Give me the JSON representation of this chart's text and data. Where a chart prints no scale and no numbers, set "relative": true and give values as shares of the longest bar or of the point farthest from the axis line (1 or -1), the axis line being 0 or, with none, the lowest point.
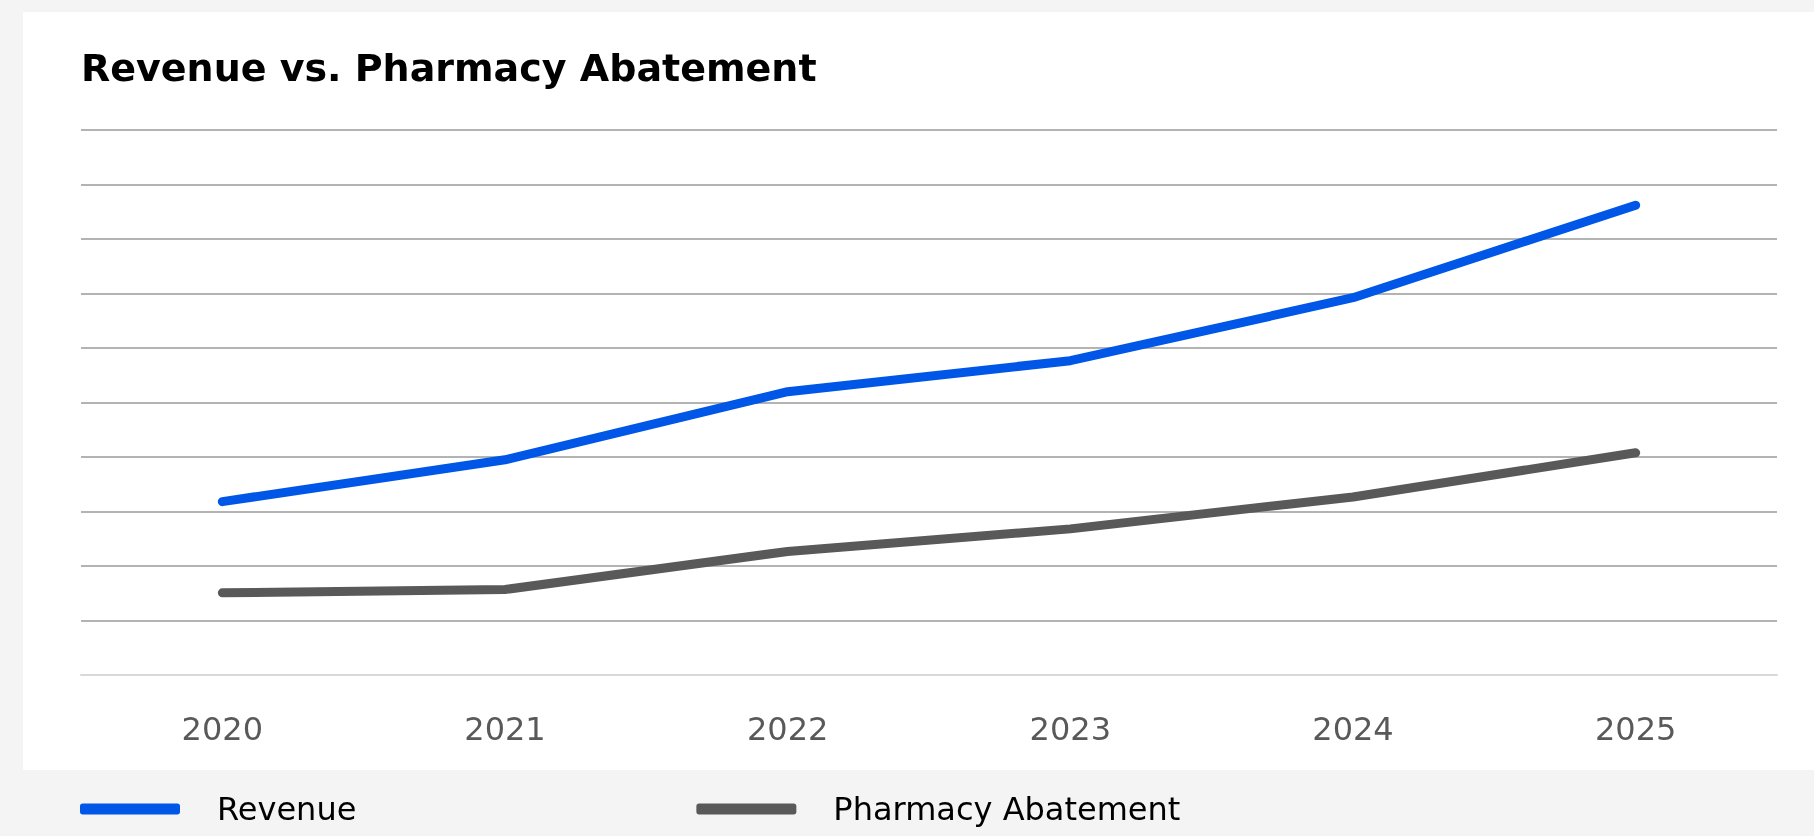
{
  "chart_data": {
    "type": "line",
    "title": "Revenue vs. Pharmacy Abatement",
    "relative": true,
    "categories": [
      "2020",
      "2021",
      "2022",
      "2023",
      "2024",
      "2025"
    ],
    "series": [
      {
        "name": "Revenue",
        "color": "#0057e7",
        "values": [
          0.369,
          0.458,
          0.603,
          0.669,
          0.803,
          1
        ]
      },
      {
        "name": "Pharmacy Abatement",
        "color": "#595959",
        "values": [
          0.175,
          0.182,
          0.263,
          0.311,
          0.379,
          0.473
        ]
      }
    ],
    "grid": "y",
    "legend": "bottom",
    "marker": "none",
    "line_style": "solid"
  }
}
